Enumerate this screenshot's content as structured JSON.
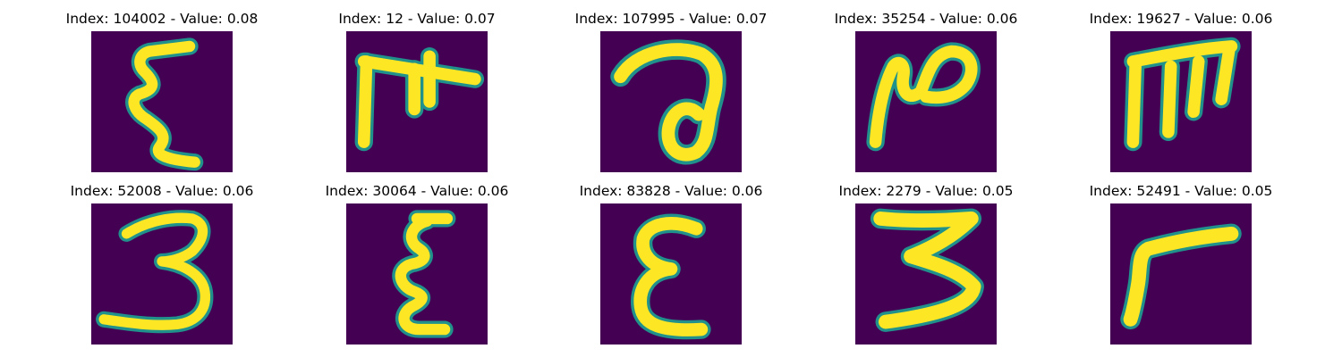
{
  "chart_data": {
    "type": "heatmap",
    "layout": "2 rows x 5 columns of image panels",
    "colormap": "viridis",
    "colors": {
      "background": "#440154",
      "mid": "#21918c",
      "stroke": "#fde725"
    },
    "panels": [
      {
        "title": "Index: 104002 - Value: 0.08",
        "index": 104002,
        "value": 0.08,
        "glyph": "ε"
      },
      {
        "title": "Index: 12 - Value: 0.07",
        "index": 12,
        "value": 0.07,
        "glyph": "π-like"
      },
      {
        "title": "Index: 107995 - Value: 0.07",
        "index": 107995,
        "value": 0.07,
        "glyph": "a-like"
      },
      {
        "title": "Index: 35254 - Value: 0.06",
        "index": 35254,
        "value": 0.06,
        "glyph": "N-like"
      },
      {
        "title": "Index: 19627 - Value: 0.06",
        "index": 19627,
        "value": 0.06,
        "glyph": "m-like"
      },
      {
        "title": "Index: 52008 - Value: 0.06",
        "index": 52008,
        "value": 0.06,
        "glyph": "3"
      },
      {
        "title": "Index: 30064 - Value: 0.06",
        "index": 30064,
        "value": 0.06,
        "glyph": "ξ"
      },
      {
        "title": "Index: 83828 - Value: 0.06",
        "index": 83828,
        "value": 0.06,
        "glyph": "ε"
      },
      {
        "title": "Index: 2279 - Value: 0.05",
        "index": 2279,
        "value": 0.05,
        "glyph": "3-like"
      },
      {
        "title": "Index: 52491 - Value: 0.05",
        "index": 52491,
        "value": 0.05,
        "glyph": "r-like"
      }
    ]
  }
}
